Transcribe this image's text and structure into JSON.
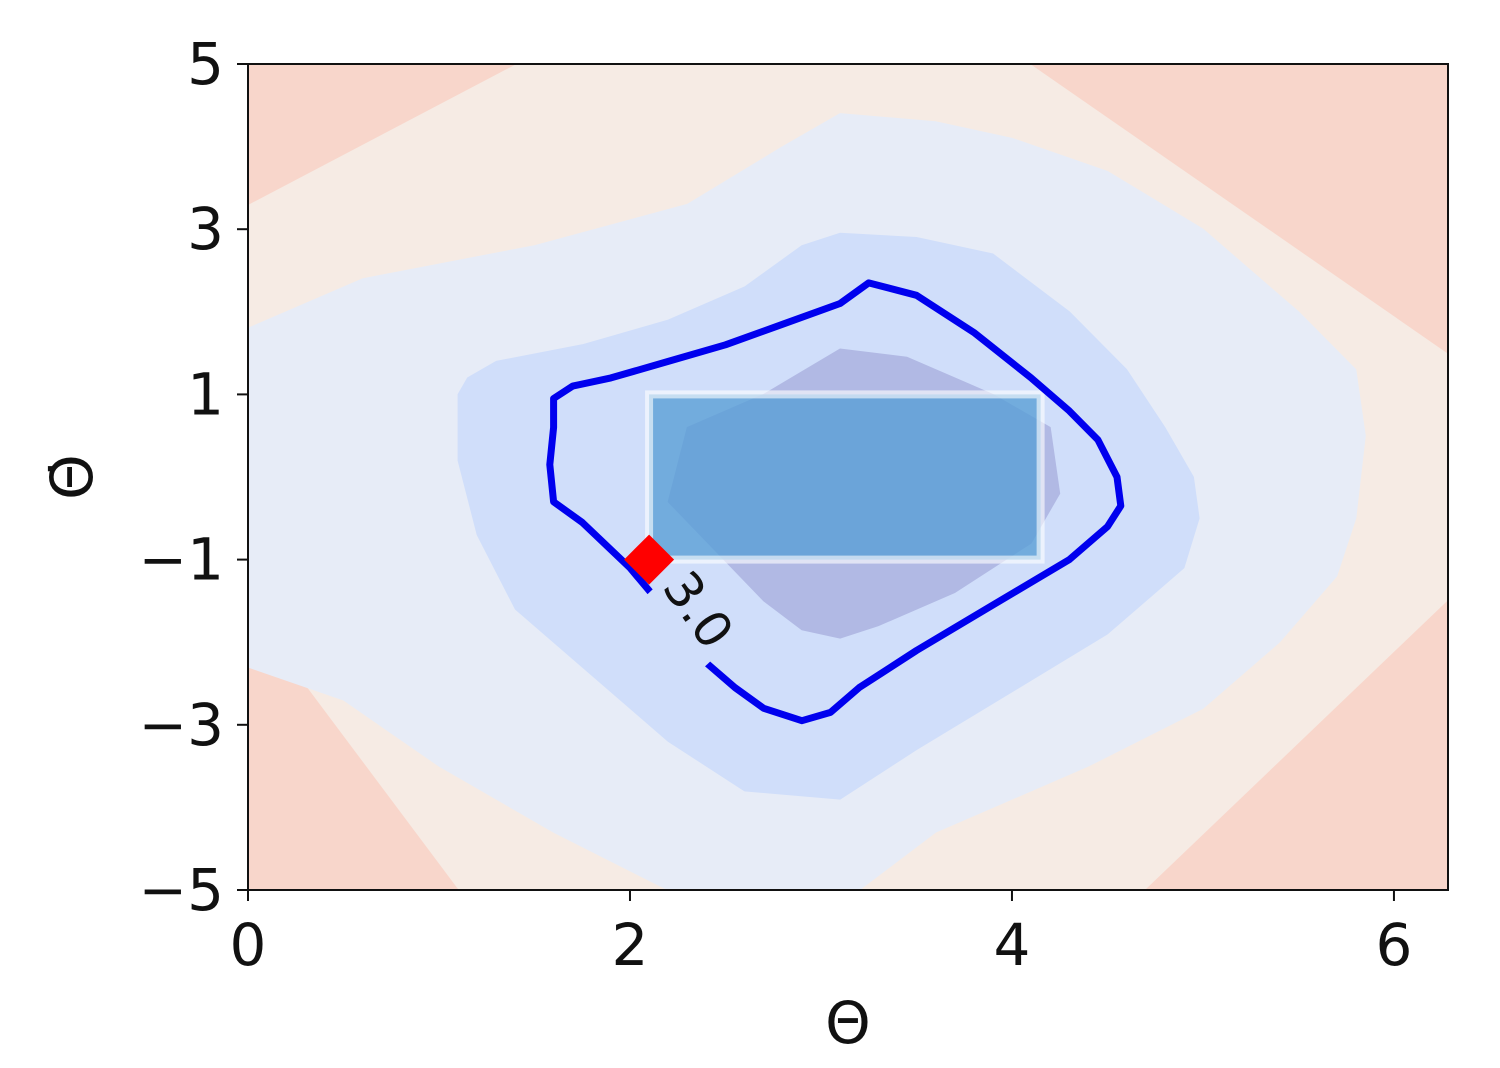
{
  "chart_data": {
    "type": "contour",
    "xlabel": "Θ",
    "ylabel": "Θ̇",
    "xlim": [
      0,
      6.283
    ],
    "ylim": [
      -5,
      5
    ],
    "xticks": [
      0,
      2,
      4,
      6
    ],
    "yticks": [
      5,
      3,
      1,
      -1,
      -3,
      -5
    ],
    "xtick_labels": [
      "0",
      "2",
      "4",
      "6"
    ],
    "ytick_labels": [
      "5",
      "3",
      "1",
      "−1",
      "−3",
      "−5"
    ],
    "grid": false,
    "colormap": "blue-center, red-edges (coolwarm)",
    "fill_levels": [
      {
        "color": "#de95a8",
        "points": [
          [
            5.9,
            5
          ],
          [
            6.283,
            5
          ],
          [
            6.283,
            4
          ]
        ]
      },
      {
        "color": "#ebb5b0",
        "points": [
          [
            0,
            5
          ],
          [
            0.55,
            5
          ],
          [
            0,
            4.6
          ]
        ]
      },
      {
        "color": "#ebb5b0",
        "points": [
          [
            5.0,
            5
          ],
          [
            6.283,
            5
          ],
          [
            6.283,
            3.2
          ]
        ]
      },
      {
        "color": "#ebb5b0",
        "points": [
          [
            5.6,
            -5
          ],
          [
            6.283,
            -5
          ],
          [
            6.283,
            -3.8
          ]
        ]
      },
      {
        "color": "#f8d6cb",
        "points": [
          [
            0,
            5
          ],
          [
            1.4,
            5
          ],
          [
            0,
            3.3
          ]
        ]
      },
      {
        "color": "#f8d6cb",
        "points": [
          [
            4.1,
            5
          ],
          [
            6.283,
            5
          ],
          [
            6.283,
            1.5
          ]
        ]
      },
      {
        "color": "#f8d6cb",
        "points": [
          [
            0,
            -1.6
          ],
          [
            0,
            -5
          ],
          [
            1.1,
            -5
          ]
        ]
      },
      {
        "color": "#f8d6cb",
        "points": [
          [
            4.7,
            -5
          ],
          [
            6.283,
            -5
          ],
          [
            6.283,
            -1.5
          ]
        ]
      },
      {
        "color": "#e7ecf7",
        "points": [
          [
            0,
            1.8
          ],
          [
            0.6,
            2.4
          ],
          [
            1.5,
            2.8
          ],
          [
            2.3,
            3.3
          ],
          [
            2.8,
            4.0
          ],
          [
            3.1,
            4.4
          ],
          [
            3.6,
            4.3
          ],
          [
            4.0,
            4.1
          ],
          [
            4.5,
            3.7
          ],
          [
            5.0,
            3.0
          ],
          [
            5.5,
            2.0
          ],
          [
            5.8,
            1.3
          ],
          [
            5.85,
            0.5
          ],
          [
            5.8,
            -0.5
          ],
          [
            5.7,
            -1.2
          ],
          [
            5.4,
            -2.0
          ],
          [
            5.0,
            -2.8
          ],
          [
            4.4,
            -3.5
          ],
          [
            3.6,
            -4.3
          ],
          [
            3.2,
            -5
          ],
          [
            2.2,
            -5
          ],
          [
            1.6,
            -4.3
          ],
          [
            1.0,
            -3.5
          ],
          [
            0.5,
            -2.7
          ],
          [
            0,
            -2.3
          ]
        ]
      },
      {
        "color": "#d0defa",
        "points": [
          [
            1.1,
            1.0
          ],
          [
            1.15,
            1.2
          ],
          [
            1.3,
            1.4
          ],
          [
            1.75,
            1.6
          ],
          [
            2.2,
            1.9
          ],
          [
            2.6,
            2.3
          ],
          [
            2.9,
            2.8
          ],
          [
            3.1,
            2.95
          ],
          [
            3.5,
            2.9
          ],
          [
            3.9,
            2.7
          ],
          [
            4.3,
            2.0
          ],
          [
            4.6,
            1.3
          ],
          [
            4.8,
            0.6
          ],
          [
            4.95,
            0
          ],
          [
            4.98,
            -0.5
          ],
          [
            4.9,
            -1.1
          ],
          [
            4.5,
            -1.9
          ],
          [
            4.0,
            -2.6
          ],
          [
            3.5,
            -3.3
          ],
          [
            3.1,
            -3.9
          ],
          [
            2.6,
            -3.8
          ],
          [
            2.2,
            -3.2
          ],
          [
            1.8,
            -2.4
          ],
          [
            1.4,
            -1.6
          ],
          [
            1.2,
            -0.7
          ],
          [
            1.1,
            0.2
          ]
        ]
      },
      {
        "color": "#b1b9e4",
        "points": [
          [
            2.3,
            0.6
          ],
          [
            2.7,
            1.0
          ],
          [
            3.1,
            1.55
          ],
          [
            3.45,
            1.45
          ],
          [
            3.9,
            1.0
          ],
          [
            4.2,
            0.6
          ],
          [
            4.25,
            -0.2
          ],
          [
            4.1,
            -0.8
          ],
          [
            3.7,
            -1.4
          ],
          [
            3.3,
            -1.8
          ],
          [
            3.1,
            -1.95
          ],
          [
            2.9,
            -1.85
          ],
          [
            2.7,
            -1.5
          ],
          [
            2.45,
            -0.9
          ],
          [
            2.2,
            -0.3
          ]
        ]
      }
    ],
    "contour_line": {
      "label": "3.0",
      "color": "#0000ee",
      "points": [
        [
          1.6,
          0.95
        ],
        [
          1.7,
          1.1
        ],
        [
          1.9,
          1.2
        ],
        [
          2.2,
          1.4
        ],
        [
          2.5,
          1.6
        ],
        [
          2.8,
          1.85
        ],
        [
          3.1,
          2.1
        ],
        [
          3.25,
          2.35
        ],
        [
          3.5,
          2.2
        ],
        [
          3.8,
          1.75
        ],
        [
          4.1,
          1.2
        ],
        [
          4.3,
          0.8
        ],
        [
          4.45,
          0.45
        ],
        [
          4.55,
          0.0
        ],
        [
          4.57,
          -0.35
        ],
        [
          4.5,
          -0.6
        ],
        [
          4.3,
          -1.0
        ],
        [
          3.9,
          -1.55
        ],
        [
          3.5,
          -2.1
        ],
        [
          3.2,
          -2.55
        ],
        [
          3.05,
          -2.85
        ],
        [
          2.9,
          -2.95
        ],
        [
          2.7,
          -2.8
        ],
        [
          2.55,
          -2.55
        ],
        [
          2.35,
          -2.15
        ],
        [
          2.2,
          -1.65
        ],
        [
          2.0,
          -1.1
        ],
        [
          1.75,
          -0.55
        ],
        [
          1.6,
          -0.3
        ],
        [
          1.58,
          0.15
        ],
        [
          1.6,
          0.6
        ]
      ]
    },
    "target_region": {
      "x": [
        2.1,
        4.15
      ],
      "y": [
        -1,
        1
      ],
      "color": "#5a9fd6"
    },
    "marker": {
      "x": 2.1,
      "y": -1,
      "shape": "diamond",
      "color": "#ff0000"
    }
  }
}
